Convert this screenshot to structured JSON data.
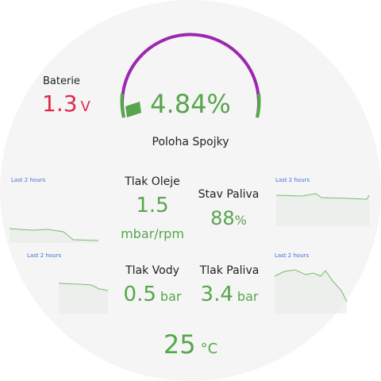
{
  "battery": {
    "title": "Baterie",
    "value": "1.3",
    "unit": "V"
  },
  "clutch": {
    "title": "Poloha Spojky",
    "value": "4.84",
    "unit": "%"
  },
  "oil_pressure": {
    "title": "Tlak Oleje",
    "value": "1.5",
    "unit": "mbar/rpm"
  },
  "fuel_level": {
    "title": "Stav Paliva",
    "value": "88",
    "unit": "%"
  },
  "water_pressure": {
    "title": "Tlak Vody",
    "value": "0.5",
    "unit": "bar"
  },
  "fuel_pressure": {
    "title": "Tlak Paliva",
    "value": "3.4",
    "unit": "bar"
  },
  "temperature": {
    "value": "25",
    "unit": "°C"
  },
  "time_ranges": [
    "Last 2 hours",
    "Last 2 hours",
    "Last 2 hours",
    "Last 2 hours"
  ]
}
